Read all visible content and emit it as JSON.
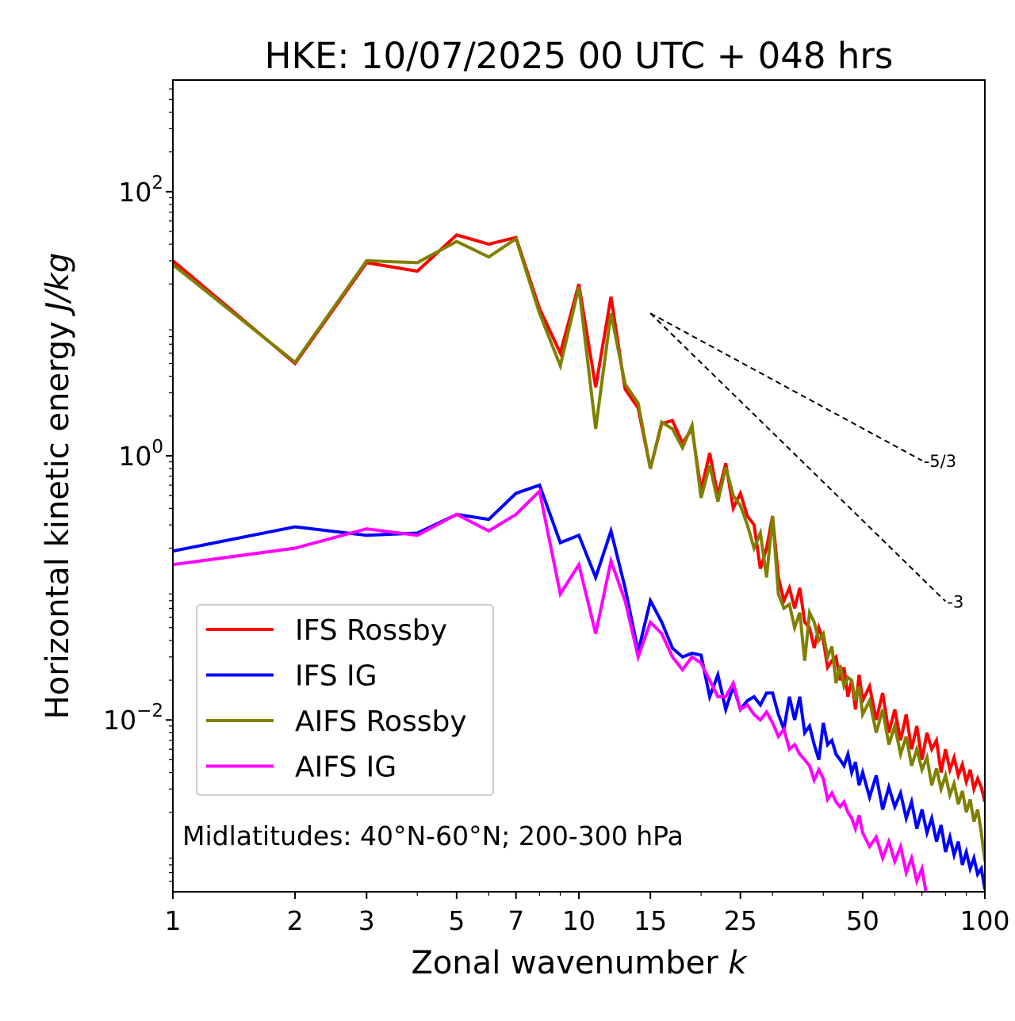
{
  "chart_data": {
    "type": "line",
    "title": "HKE: 10/07/2025 00 UTC + 048 hrs",
    "xlabel": "Zonal wavenumber k",
    "ylabel": "Horizontal kinetic energy J/kg",
    "xscale": "log",
    "yscale": "log",
    "xlim": [
      1,
      100
    ],
    "ylim": [
      0.0005,
      700
    ],
    "x_ticks": [
      1,
      2,
      3,
      5,
      7,
      10,
      15,
      25,
      50,
      100
    ],
    "x_tick_labels": [
      "1",
      "2",
      "3",
      "5",
      "7",
      "10",
      "15",
      "25",
      "50",
      "100"
    ],
    "y_ticks": [
      0.01,
      1,
      100
    ],
    "y_tick_exponents": [
      "−2",
      "0",
      "2"
    ],
    "y_tick_base": "10",
    "legend_position": "lower-left",
    "annotation": "Midlatitudes: 40°N-60°N; 200-300 hPa",
    "reference_slopes": [
      {
        "label": "-5/3",
        "slope": -1.6667,
        "x": [
          15,
          70
        ],
        "y_start": 12
      },
      {
        "label": "-3",
        "slope": -3,
        "x": [
          15,
          80
        ],
        "y_start": 12
      }
    ],
    "series": [
      {
        "name": "IFS Rossby",
        "color": "#ff0000",
        "x": [
          1,
          2,
          3,
          4,
          5,
          6,
          7,
          8,
          9,
          10,
          11,
          12,
          13,
          14,
          15,
          16,
          17,
          18,
          19,
          20,
          21,
          22,
          23,
          24,
          25,
          26,
          27,
          28,
          29,
          30,
          31,
          32,
          33,
          34,
          35,
          36,
          37,
          38,
          39,
          40,
          41,
          42,
          43,
          44,
          45,
          46,
          47,
          48,
          49,
          50,
          52,
          54,
          56,
          58,
          60,
          62,
          64,
          66,
          68,
          70,
          72,
          74,
          76,
          78,
          80,
          82,
          84,
          86,
          88,
          90,
          92,
          94,
          96,
          98,
          100
        ],
        "y": [
          30,
          5,
          29,
          25,
          47,
          40,
          45,
          13,
          6,
          20,
          3.3,
          16,
          3.2,
          2.3,
          0.8,
          1.75,
          1.85,
          1.25,
          1.6,
          0.55,
          1.05,
          0.5,
          0.88,
          0.4,
          0.52,
          0.35,
          0.3,
          0.14,
          0.2,
          0.35,
          0.12,
          0.08,
          0.1,
          0.07,
          0.1,
          0.055,
          0.05,
          0.035,
          0.05,
          0.04,
          0.025,
          0.028,
          0.03,
          0.02,
          0.025,
          0.015,
          0.02,
          0.012,
          0.022,
          0.014,
          0.018,
          0.01,
          0.016,
          0.008,
          0.012,
          0.007,
          0.011,
          0.006,
          0.009,
          0.005,
          0.008,
          0.006,
          0.007,
          0.004,
          0.006,
          0.0042,
          0.0052,
          0.0038,
          0.0046,
          0.0034,
          0.0042,
          0.003,
          0.0036,
          0.0031,
          0.0024
        ]
      },
      {
        "name": "IFS IG",
        "color": "#0000ff",
        "x": [
          1,
          2,
          3,
          4,
          5,
          6,
          7,
          8,
          9,
          10,
          11,
          12,
          13,
          14,
          15,
          16,
          17,
          18,
          19,
          20,
          21,
          22,
          23,
          24,
          25,
          26,
          27,
          28,
          29,
          30,
          31,
          32,
          33,
          34,
          35,
          36,
          37,
          38,
          39,
          40,
          41,
          42,
          43,
          44,
          45,
          46,
          47,
          48,
          49,
          50,
          52,
          54,
          56,
          58,
          60,
          62,
          64,
          66,
          68,
          70,
          72,
          74,
          76,
          78,
          80,
          82,
          84,
          86,
          88,
          90,
          92,
          94,
          96,
          98,
          100
        ],
        "y": [
          0.19,
          0.29,
          0.25,
          0.26,
          0.36,
          0.33,
          0.52,
          0.6,
          0.22,
          0.25,
          0.12,
          0.27,
          0.1,
          0.033,
          0.08,
          0.055,
          0.035,
          0.03,
          0.032,
          0.031,
          0.015,
          0.022,
          0.012,
          0.018,
          0.012,
          0.014,
          0.015,
          0.013,
          0.016,
          0.016,
          0.011,
          0.0085,
          0.015,
          0.01,
          0.015,
          0.008,
          0.009,
          0.0065,
          0.005,
          0.0095,
          0.0065,
          0.007,
          0.0055,
          0.005,
          0.0045,
          0.0055,
          0.004,
          0.0048,
          0.0032,
          0.004,
          0.0026,
          0.0038,
          0.0021,
          0.0031,
          0.0022,
          0.0028,
          0.0018,
          0.0024,
          0.0015,
          0.0021,
          0.0014,
          0.0018,
          0.0012,
          0.0016,
          0.001,
          0.0013,
          0.00095,
          0.0012,
          0.0008,
          0.001,
          0.00075,
          0.0009,
          0.00068,
          0.00075,
          0.00052
        ]
      },
      {
        "name": "AIFS Rossby",
        "color": "#808000",
        "x": [
          1,
          2,
          3,
          4,
          5,
          6,
          7,
          8,
          9,
          10,
          11,
          12,
          13,
          14,
          15,
          16,
          17,
          18,
          19,
          20,
          21,
          22,
          23,
          24,
          25,
          26,
          27,
          28,
          29,
          30,
          31,
          32,
          33,
          34,
          35,
          36,
          37,
          38,
          39,
          40,
          41,
          42,
          43,
          44,
          45,
          46,
          47,
          48,
          49,
          50,
          52,
          54,
          56,
          58,
          60,
          62,
          64,
          66,
          68,
          70,
          72,
          74,
          76,
          78,
          80,
          82,
          84,
          86,
          88,
          90,
          92,
          94,
          96,
          98,
          100
        ],
        "y": [
          28,
          5.1,
          30,
          29,
          42,
          32,
          44,
          12,
          4.8,
          19,
          1.6,
          12,
          3.5,
          2.5,
          0.8,
          1.8,
          1.6,
          1.15,
          1.7,
          0.48,
          0.85,
          0.45,
          0.82,
          0.5,
          0.42,
          0.3,
          0.2,
          0.26,
          0.12,
          0.35,
          0.09,
          0.07,
          0.075,
          0.05,
          0.065,
          0.028,
          0.065,
          0.055,
          0.04,
          0.045,
          0.03,
          0.036,
          0.019,
          0.026,
          0.018,
          0.021,
          0.02,
          0.014,
          0.018,
          0.011,
          0.014,
          0.008,
          0.012,
          0.0065,
          0.009,
          0.0055,
          0.0075,
          0.0045,
          0.006,
          0.0042,
          0.0052,
          0.0032,
          0.0043,
          0.003,
          0.0038,
          0.0027,
          0.0033,
          0.0023,
          0.0029,
          0.002,
          0.0025,
          0.0017,
          0.0021,
          0.0014,
          0.00085
        ]
      },
      {
        "name": "AIFS IG",
        "color": "#ff00ff",
        "x": [
          1,
          2,
          3,
          4,
          5,
          6,
          7,
          8,
          9,
          10,
          11,
          12,
          13,
          14,
          15,
          16,
          17,
          18,
          19,
          20,
          21,
          22,
          23,
          24,
          25,
          26,
          27,
          28,
          29,
          30,
          31,
          32,
          33,
          34,
          35,
          36,
          37,
          38,
          39,
          40,
          41,
          42,
          43,
          44,
          45,
          46,
          47,
          48,
          49,
          50,
          52,
          54,
          56,
          58,
          60,
          62,
          64,
          66,
          68,
          70,
          72
        ],
        "y": [
          0.15,
          0.2,
          0.28,
          0.25,
          0.36,
          0.27,
          0.36,
          0.54,
          0.09,
          0.15,
          0.045,
          0.16,
          0.08,
          0.03,
          0.055,
          0.045,
          0.03,
          0.024,
          0.03,
          0.027,
          0.02,
          0.015,
          0.015,
          0.019,
          0.012,
          0.013,
          0.011,
          0.01,
          0.0115,
          0.0095,
          0.0075,
          0.0085,
          0.006,
          0.0065,
          0.0055,
          0.005,
          0.0045,
          0.0035,
          0.0042,
          0.0036,
          0.0025,
          0.0028,
          0.0024,
          0.0022,
          0.0024,
          0.002,
          0.0018,
          0.0015,
          0.0019,
          0.0014,
          0.0011,
          0.0013,
          0.0009,
          0.0012,
          0.00085,
          0.0011,
          0.0007,
          0.0009,
          0.0006,
          0.00075,
          0.00045
        ]
      }
    ]
  }
}
